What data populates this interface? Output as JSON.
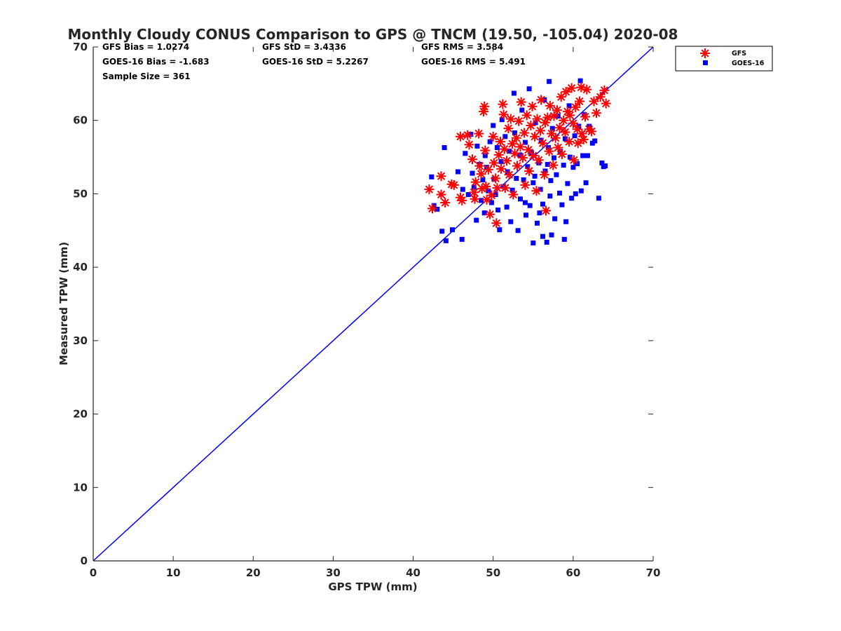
{
  "chart_data": {
    "type": "scatter",
    "title": "Monthly Cloudy CONUS Comparison to GPS @ TNCM (19.50, -105.04) 2020-08",
    "xlabel": "GPS TPW (mm)",
    "ylabel": "Measured TPW (mm)",
    "xlim": [
      0,
      70
    ],
    "ylim": [
      0,
      70
    ],
    "xticks": [
      0,
      10,
      20,
      30,
      40,
      50,
      60,
      70
    ],
    "yticks": [
      0,
      10,
      20,
      30,
      40,
      50,
      60,
      70
    ],
    "grid": false,
    "legend_position": "top-right outside",
    "reference_line": {
      "name": "1:1 line",
      "from": [
        0,
        0
      ],
      "to": [
        70,
        70
      ],
      "color": "#0000ff"
    },
    "stats": [
      "GFS Bias = 1.0274",
      "GFS StD = 3.4336",
      "GFS RMS = 3.584",
      "GOES-16 Bias = -1.683",
      "GOES-16 StD = 5.2267",
      "GOES-16 RMS = 5.491",
      "Sample Size = 361"
    ],
    "series": [
      {
        "name": "GFS",
        "marker": "asterisk",
        "color": "#ff0000",
        "points": [
          [
            42.0,
            50.6
          ],
          [
            42.4,
            48.0
          ],
          [
            43.5,
            52.4
          ],
          [
            43.5,
            49.9
          ],
          [
            44.0,
            48.8
          ],
          [
            44.8,
            51.3
          ],
          [
            45.1,
            51.2
          ],
          [
            45.9,
            57.8
          ],
          [
            45.9,
            49.5
          ],
          [
            46.1,
            49.1
          ],
          [
            46.8,
            58.0
          ],
          [
            47.0,
            56.7
          ],
          [
            47.4,
            54.7
          ],
          [
            47.6,
            50.2
          ],
          [
            47.7,
            49.3
          ],
          [
            47.8,
            51.6
          ],
          [
            48.2,
            58.2
          ],
          [
            48.3,
            53.8
          ],
          [
            48.5,
            52.7
          ],
          [
            48.6,
            50.7
          ],
          [
            48.8,
            61.2
          ],
          [
            48.9,
            61.9
          ],
          [
            49.0,
            55.9
          ],
          [
            49.1,
            51.0
          ],
          [
            49.2,
            49.2
          ],
          [
            49.4,
            53.3
          ],
          [
            49.6,
            47.2
          ],
          [
            49.8,
            49.8
          ],
          [
            50.0,
            57.8
          ],
          [
            50.1,
            54.2
          ],
          [
            50.3,
            52.1
          ],
          [
            50.4,
            46.0
          ],
          [
            50.5,
            50.8
          ],
          [
            50.7,
            55.3
          ],
          [
            50.9,
            57.1
          ],
          [
            51.0,
            53.4
          ],
          [
            51.2,
            62.2
          ],
          [
            51.3,
            60.8
          ],
          [
            51.4,
            56.1
          ],
          [
            51.5,
            50.8
          ],
          [
            51.7,
            54.5
          ],
          [
            51.9,
            58.9
          ],
          [
            52.0,
            52.6
          ],
          [
            52.2,
            60.2
          ],
          [
            52.4,
            56.8
          ],
          [
            52.5,
            49.9
          ],
          [
            52.7,
            55.5
          ],
          [
            52.9,
            57.6
          ],
          [
            53.0,
            53.8
          ],
          [
            53.2,
            59.9
          ],
          [
            53.4,
            56.4
          ],
          [
            53.5,
            62.5
          ],
          [
            53.7,
            54.9
          ],
          [
            53.9,
            58.3
          ],
          [
            54.0,
            51.2
          ],
          [
            54.2,
            60.7
          ],
          [
            54.4,
            56.0
          ],
          [
            54.5,
            53.1
          ],
          [
            54.7,
            59.3
          ],
          [
            54.9,
            61.9
          ],
          [
            55.0,
            55.2
          ],
          [
            55.2,
            57.8
          ],
          [
            55.4,
            50.4
          ],
          [
            55.5,
            60.2
          ],
          [
            55.7,
            54.6
          ],
          [
            55.9,
            58.6
          ],
          [
            56.0,
            62.8
          ],
          [
            56.2,
            56.9
          ],
          [
            56.4,
            52.6
          ],
          [
            56.5,
            59.7
          ],
          [
            56.6,
            47.7
          ],
          [
            56.8,
            60.4
          ],
          [
            57.0,
            55.8
          ],
          [
            57.1,
            62.0
          ],
          [
            57.3,
            58.2
          ],
          [
            57.5,
            53.9
          ],
          [
            57.6,
            60.6
          ],
          [
            57.8,
            57.6
          ],
          [
            58.0,
            61.4
          ],
          [
            58.1,
            56.3
          ],
          [
            58.3,
            59.0
          ],
          [
            58.5,
            63.2
          ],
          [
            58.6,
            55.4
          ],
          [
            58.8,
            60.0
          ],
          [
            59.0,
            58.4
          ],
          [
            59.1,
            63.9
          ],
          [
            59.3,
            61.2
          ],
          [
            59.5,
            57.1
          ],
          [
            59.6,
            60.7
          ],
          [
            59.8,
            64.4
          ],
          [
            60.0,
            59.6
          ],
          [
            60.1,
            54.6
          ],
          [
            60.3,
            61.8
          ],
          [
            60.5,
            58.8
          ],
          [
            60.6,
            56.9
          ],
          [
            60.8,
            62.6
          ],
          [
            61.0,
            64.5
          ],
          [
            61.1,
            58.2
          ],
          [
            61.3,
            57.4
          ],
          [
            61.5,
            60.5
          ],
          [
            61.7,
            64.2
          ],
          [
            62.0,
            58.8
          ],
          [
            62.3,
            58.5
          ],
          [
            62.6,
            62.6
          ],
          [
            62.9,
            61.0
          ],
          [
            63.4,
            63.2
          ],
          [
            63.9,
            64.1
          ],
          [
            64.1,
            62.3
          ]
        ]
      },
      {
        "name": "GOES-16",
        "marker": "square",
        "color": "#0000ff",
        "points": [
          [
            42.3,
            52.3
          ],
          [
            42.6,
            48.4
          ],
          [
            43.0,
            47.9
          ],
          [
            43.6,
            44.9
          ],
          [
            43.9,
            56.3
          ],
          [
            44.1,
            43.6
          ],
          [
            44.9,
            45.1
          ],
          [
            45.6,
            53.0
          ],
          [
            46.1,
            43.8
          ],
          [
            46.2,
            50.6
          ],
          [
            46.5,
            55.5
          ],
          [
            46.9,
            49.9
          ],
          [
            47.2,
            58.1
          ],
          [
            47.4,
            52.8
          ],
          [
            47.6,
            50.9
          ],
          [
            47.9,
            46.4
          ],
          [
            48.0,
            56.5
          ],
          [
            48.3,
            54.0
          ],
          [
            48.5,
            49.1
          ],
          [
            48.7,
            51.9
          ],
          [
            48.9,
            47.4
          ],
          [
            49.0,
            55.2
          ],
          [
            49.2,
            53.6
          ],
          [
            49.4,
            50.4
          ],
          [
            49.6,
            57.1
          ],
          [
            49.8,
            48.8
          ],
          [
            50.0,
            59.3
          ],
          [
            50.1,
            52.0
          ],
          [
            50.3,
            49.9
          ],
          [
            50.5,
            56.3
          ],
          [
            50.6,
            47.8
          ],
          [
            50.8,
            45.1
          ],
          [
            51.0,
            54.4
          ],
          [
            51.1,
            60.1
          ],
          [
            51.3,
            51.0
          ],
          [
            51.5,
            57.8
          ],
          [
            51.7,
            48.2
          ],
          [
            51.8,
            53.0
          ],
          [
            52.0,
            55.8
          ],
          [
            52.2,
            46.2
          ],
          [
            52.4,
            50.5
          ],
          [
            52.6,
            63.7
          ],
          [
            52.7,
            58.3
          ],
          [
            52.9,
            52.1
          ],
          [
            53.1,
            45.0
          ],
          [
            53.3,
            55.3
          ],
          [
            53.4,
            49.3
          ],
          [
            53.6,
            61.4
          ],
          [
            53.8,
            51.9
          ],
          [
            54.0,
            57.0
          ],
          [
            54.1,
            47.1
          ],
          [
            54.3,
            53.7
          ],
          [
            54.5,
            64.3
          ],
          [
            54.6,
            48.4
          ],
          [
            54.8,
            55.6
          ],
          [
            55.0,
            43.3
          ],
          [
            55.2,
            52.4
          ],
          [
            55.3,
            59.7
          ],
          [
            55.5,
            46.0
          ],
          [
            55.7,
            54.2
          ],
          [
            55.9,
            50.6
          ],
          [
            56.0,
            57.3
          ],
          [
            56.2,
            48.6
          ],
          [
            56.4,
            62.8
          ],
          [
            56.5,
            53.1
          ],
          [
            56.7,
            43.4
          ],
          [
            56.9,
            56.3
          ],
          [
            57.1,
            49.7
          ],
          [
            57.2,
            51.8
          ],
          [
            57.4,
            58.9
          ],
          [
            57.6,
            54.9
          ],
          [
            57.7,
            46.6
          ],
          [
            57.9,
            52.6
          ],
          [
            58.1,
            60.6
          ],
          [
            58.3,
            50.1
          ],
          [
            58.4,
            55.8
          ],
          [
            58.6,
            48.5
          ],
          [
            58.8,
            53.9
          ],
          [
            59.0,
            57.5
          ],
          [
            59.1,
            46.2
          ],
          [
            59.3,
            51.4
          ],
          [
            59.5,
            62.0
          ],
          [
            59.6,
            55.0
          ],
          [
            59.8,
            49.4
          ],
          [
            60.0,
            53.6
          ],
          [
            60.2,
            57.9
          ],
          [
            60.3,
            50.0
          ],
          [
            60.5,
            54.1
          ],
          [
            60.7,
            59.2
          ],
          [
            60.9,
            65.4
          ],
          [
            61.0,
            50.4
          ],
          [
            61.2,
            55.2
          ],
          [
            61.4,
            60.8
          ],
          [
            61.6,
            51.5
          ],
          [
            61.8,
            55.2
          ],
          [
            62.0,
            59.2
          ],
          [
            62.4,
            56.9
          ],
          [
            62.7,
            57.2
          ],
          [
            63.2,
            49.4
          ],
          [
            63.6,
            54.2
          ],
          [
            63.8,
            53.7
          ],
          [
            64.0,
            53.8
          ],
          [
            57.0,
            65.3
          ],
          [
            56.2,
            44.2
          ],
          [
            55.8,
            47.4
          ],
          [
            57.3,
            44.4
          ],
          [
            58.9,
            43.8
          ],
          [
            54.0,
            48.8
          ],
          [
            55.0,
            51.5
          ],
          [
            56.8,
            54.0
          ]
        ]
      }
    ]
  }
}
